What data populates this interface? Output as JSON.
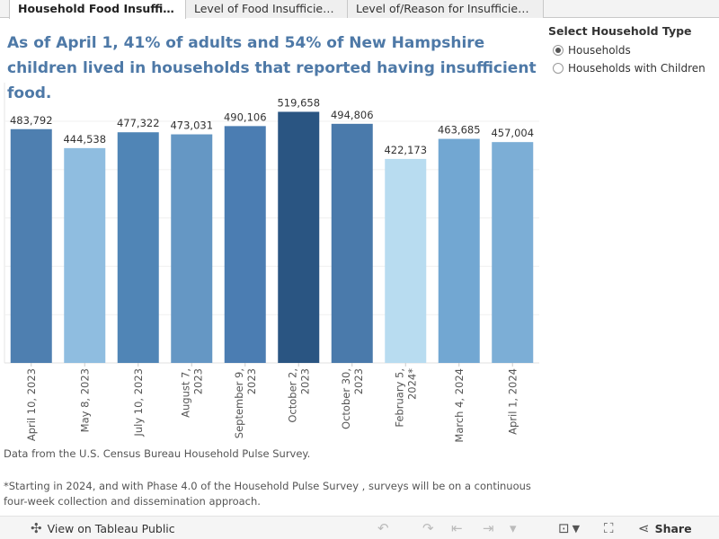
{
  "tabs": [
    {
      "label": "Household Food Insufficiency"
    },
    {
      "label": "Level of Food Insufficiency"
    },
    {
      "label": "Level of/Reason for Insufficien..."
    }
  ],
  "title": "As of April 1, 41% of adults and 54% of New Hampshire children lived in households that reported having insufficient food.",
  "filter": {
    "title": "Select Household Type",
    "options": [
      "Households",
      "Households with Children"
    ],
    "selected": "Households"
  },
  "chart_data": {
    "type": "bar",
    "categories": [
      "April 10, 2023",
      "May 8, 2023",
      "July 10, 2023",
      "August 7, 2023",
      "September 9, 2023",
      "October 2, 2023",
      "October 30, 2023",
      "February 5, 2024*",
      "March 4, 2024",
      "April 1, 2024"
    ],
    "category_lines": [
      [
        "April 10, 2023"
      ],
      [
        "May 8, 2023"
      ],
      [
        "July 10, 2023"
      ],
      [
        "August 7,",
        "2023"
      ],
      [
        "September 9,",
        "2023"
      ],
      [
        "October 2,",
        "2023"
      ],
      [
        "October 30,",
        "2023"
      ],
      [
        "February 5,",
        "2024*"
      ],
      [
        "March 4, 2024"
      ],
      [
        "April 1, 2024"
      ]
    ],
    "values": [
      483792,
      444538,
      477322,
      473031,
      490106,
      519658,
      494806,
      422173,
      463685,
      457004
    ],
    "value_labels": [
      "483,792",
      "444,538",
      "477,322",
      "473,031",
      "490,106",
      "519,658",
      "494,806",
      "422,173",
      "463,685",
      "457,004"
    ],
    "colors": [
      "#4e7fb0",
      "#8fbde0",
      "#5085b6",
      "#6597c4",
      "#4b7db2",
      "#2a5582",
      "#4a7aab",
      "#b8dcf0",
      "#72a7d2",
      "#7caed6"
    ],
    "ylim": [
      0,
      580000
    ],
    "grid": true,
    "xlabel": "",
    "ylabel": ""
  },
  "notes": {
    "source": "Data from the  U.S. Census Bureau Household Pulse Survey.",
    "footnote": "*Starting in 2024, and with Phase 4.0 of the Household Pulse Survey , surveys will be on a continuous four-week collection and dissemination approach."
  },
  "toolbar": {
    "view_label": "View on Tableau Public",
    "share_label": "Share"
  }
}
